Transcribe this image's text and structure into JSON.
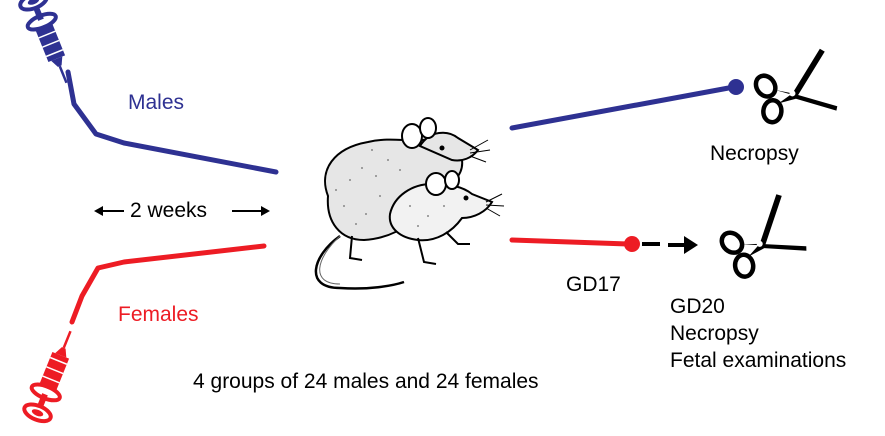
{
  "labels": {
    "males": "Males",
    "females": "Females",
    "duration": "2 weeks",
    "male_endpoint": "Necropsy",
    "gd17": "GD17",
    "female_endpoint_lines": [
      "GD20",
      "Necropsy",
      "Fetal examinations"
    ],
    "groups": "4 groups of 24 males and 24 females"
  },
  "icons": {
    "male_injection": "syringe-icon",
    "female_injection": "syringe-icon",
    "center": "rats-icon",
    "male_cut": "scissors-icon",
    "female_cut": "scissors-icon",
    "arrow": "arrow-right-icon"
  },
  "colors": {
    "male_line": "#2e3192",
    "female_line": "#ed1c24",
    "text": "#000000"
  }
}
